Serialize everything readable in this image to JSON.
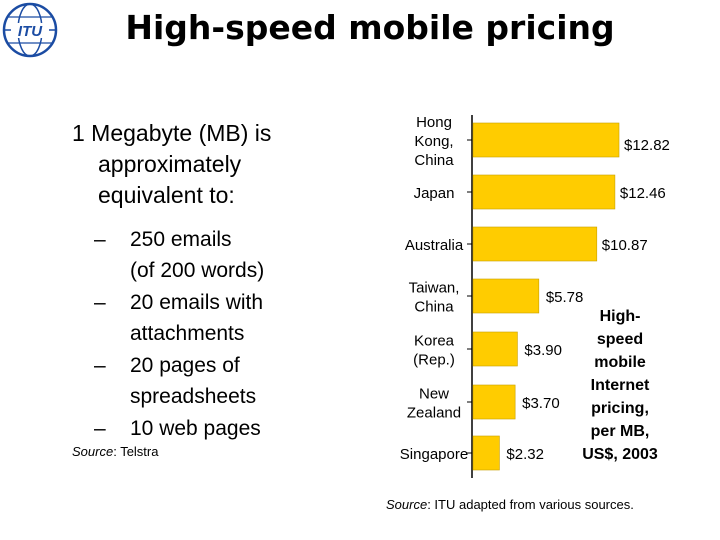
{
  "title": "High-speed mobile pricing",
  "logo": {
    "text": "ITU",
    "color": "#1b4ca3"
  },
  "intro": {
    "line1": "1 Megabyte (MB) is",
    "line2": "approximately",
    "line3": "equivalent to:"
  },
  "bullets": [
    {
      "dash": "–",
      "line1": "250 emails",
      "line2": "(of 200 words)"
    },
    {
      "dash": "–",
      "line1": "20 emails with",
      "line2": "attachments"
    },
    {
      "dash": "–",
      "line1": "20 pages of",
      "line2": "spreadsheets"
    },
    {
      "dash": "–",
      "line1": "10 web pages",
      "line2": ""
    }
  ],
  "source_left": {
    "label": "Source",
    "text": ": Telstra"
  },
  "source_right": {
    "label": "Source",
    "text": ": ITU adapted from various sources."
  },
  "note": [
    "High-",
    "speed",
    "mobile",
    "Internet",
    "pricing,",
    "per MB,",
    "US$, 2003"
  ],
  "colors": {
    "bar": "#ffcc00",
    "bar_edge": "#c8a000",
    "axis": "#000000"
  },
  "chart_data": {
    "type": "bar",
    "orientation": "horizontal",
    "title": "High-speed mobile Internet pricing, per MB, US$, 2003",
    "unit": "US$",
    "xlim": [
      0,
      14
    ],
    "categories": [
      [
        "Hong",
        "Kong,",
        "China"
      ],
      [
        "Japan"
      ],
      [
        "Australia"
      ],
      [
        "Taiwan,",
        "China"
      ],
      [
        "Korea",
        "(Rep.)"
      ],
      [
        "New",
        "Zealand"
      ],
      [
        "Singapore"
      ]
    ],
    "values": [
      12.82,
      12.46,
      10.87,
      5.78,
      3.9,
      3.7,
      2.32
    ],
    "value_labels": [
      "$12.82",
      "$12.46",
      "$10.87",
      "$5.78",
      "$3.90",
      "$3.70",
      "$2.32"
    ]
  }
}
